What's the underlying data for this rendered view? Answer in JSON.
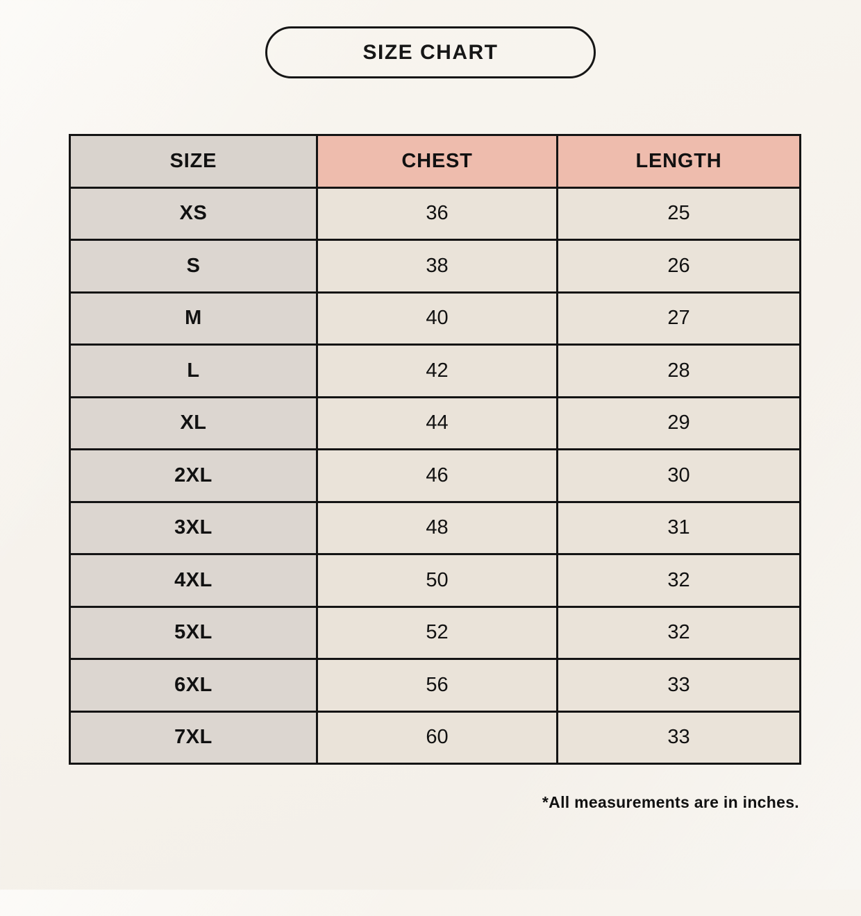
{
  "page": {
    "badge_title": "SIZE CHART",
    "footnote": "*All measurements are in inches."
  },
  "table": {
    "columns": [
      "SIZE",
      "CHEST",
      "LENGTH"
    ],
    "rows": [
      {
        "size": "XS",
        "chest": "36",
        "length": "25"
      },
      {
        "size": "S",
        "chest": "38",
        "length": "26"
      },
      {
        "size": "M",
        "chest": "40",
        "length": "27"
      },
      {
        "size": "L",
        "chest": "42",
        "length": "28"
      },
      {
        "size": "XL",
        "chest": "44",
        "length": "29"
      },
      {
        "size": "2XL",
        "chest": "46",
        "length": "30"
      },
      {
        "size": "3XL",
        "chest": "48",
        "length": "31"
      },
      {
        "size": "4XL",
        "chest": "50",
        "length": "32"
      },
      {
        "size": "5XL",
        "chest": "52",
        "length": "32"
      },
      {
        "size": "6XL",
        "chest": "56",
        "length": "33"
      },
      {
        "size": "7XL",
        "chest": "60",
        "length": "33"
      }
    ]
  },
  "colors": {
    "page_background": "#f7f3ed",
    "header_accent_pink": "#eebcad",
    "size_column_gray": "#dcd6d0",
    "data_cell_cream": "#eae3d9",
    "border_black": "#141414",
    "text_black": "#111111"
  },
  "chart_data": {
    "type": "table",
    "title": "SIZE CHART",
    "columns": [
      "SIZE",
      "CHEST",
      "LENGTH"
    ],
    "rows": [
      [
        "XS",
        36,
        25
      ],
      [
        "S",
        38,
        26
      ],
      [
        "M",
        40,
        27
      ],
      [
        "L",
        42,
        28
      ],
      [
        "XL",
        44,
        29
      ],
      [
        "2XL",
        46,
        30
      ],
      [
        "3XL",
        48,
        31
      ],
      [
        "4XL",
        50,
        32
      ],
      [
        "5XL",
        52,
        32
      ],
      [
        "6XL",
        56,
        33
      ],
      [
        "7XL",
        60,
        33
      ]
    ],
    "note": "*All measurements are in inches.",
    "units": "inches"
  }
}
